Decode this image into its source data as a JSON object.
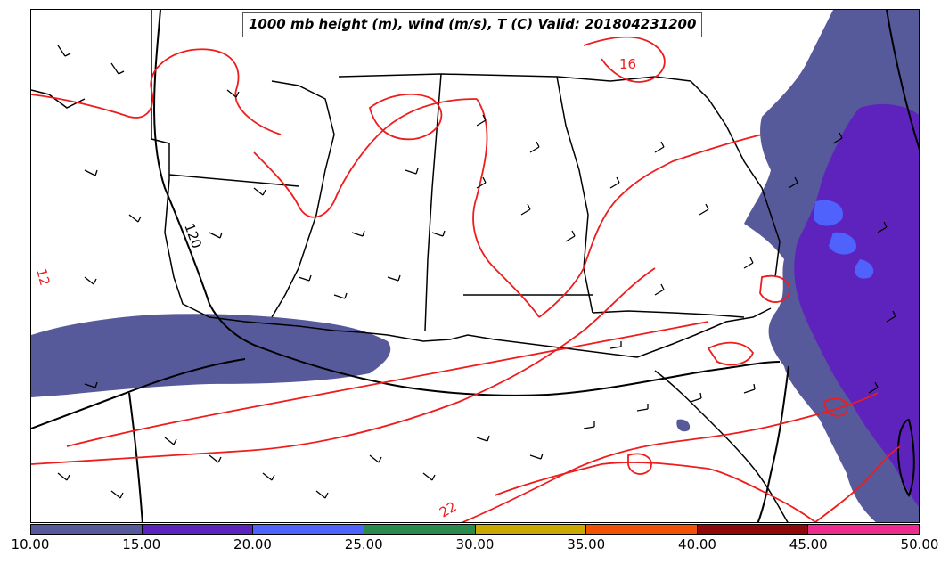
{
  "title": "1000 mb height (m), wind (m/s), T (C) Valid: 201804231200",
  "colorbar": {
    "colors": [
      "#575a9a",
      "#5e23bd",
      "#4f63fc",
      "#2a8a4e",
      "#c9a800",
      "#f25206",
      "#8e0a0a",
      "#ee2c90"
    ],
    "ticks": [
      "10.00",
      "15.00",
      "20.00",
      "25.00",
      "30.00",
      "35.00",
      "40.00",
      "45.00",
      "50.00"
    ]
  },
  "contour_labels": {
    "height": [
      "120"
    ],
    "temperature": [
      "12",
      "16",
      "22"
    ]
  },
  "colors": {
    "temperature_contour": "#ee1c1c",
    "height_contour": "#000000",
    "state_borders": "#000000"
  }
}
